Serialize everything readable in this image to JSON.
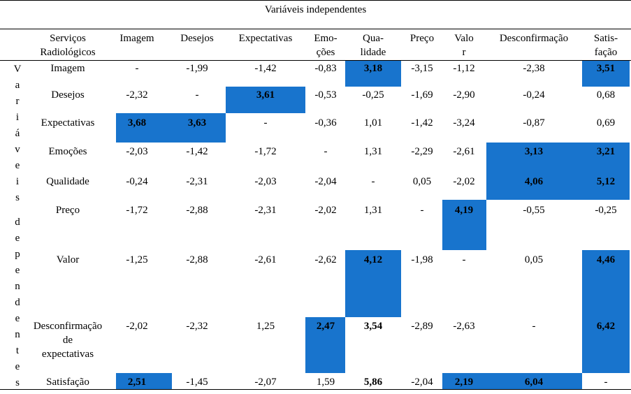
{
  "title": "Variáveis independentes",
  "side_label": [
    "V",
    "a",
    "r",
    "i",
    "á",
    "v",
    "e",
    "i",
    "s",
    "",
    "d",
    "e",
    "p",
    "e",
    "n",
    "d",
    "e",
    "n",
    "t",
    "e",
    "s"
  ],
  "headers": [
    [
      "Serviços",
      "Radiológicos"
    ],
    [
      "Imagem"
    ],
    [
      "Desejos"
    ],
    [
      "Expectativas"
    ],
    [
      "Emo-",
      "ções"
    ],
    [
      "Qua-",
      "lidade"
    ],
    [
      "Preço"
    ],
    [
      "Valo",
      "r"
    ],
    [
      "Desconfirmação"
    ],
    [
      "Satis-",
      "fação"
    ]
  ],
  "rows": [
    {
      "label": [
        "Imagem"
      ],
      "values": [
        "-",
        "-1,99",
        "-1,42",
        "-0,83",
        "3,18",
        "-3,15",
        "-1,12",
        "-2,38",
        "3,51"
      ]
    },
    {
      "label": [
        "Desejos"
      ],
      "values": [
        "-2,32",
        "-",
        "3,61",
        "-0,53",
        "-0,25",
        "-1,69",
        "-2,90",
        "-0,24",
        "0,68"
      ]
    },
    {
      "label": [
        "Expectativas"
      ],
      "values": [
        "3,68",
        "3,63",
        "-",
        "-0,36",
        "1,01",
        "-1,42",
        "-3,24",
        "-0,87",
        "0,69"
      ]
    },
    {
      "label": [
        "Emoções"
      ],
      "values": [
        "-2,03",
        "-1,42",
        "-1,72",
        "-",
        "1,31",
        "-2,29",
        "-2,61",
        "3,13",
        "3,21"
      ]
    },
    {
      "label": [
        "Qualidade"
      ],
      "values": [
        "-0,24",
        "-2,31",
        "-2,03",
        "-2,04",
        "-",
        "0,05",
        "-2,02",
        "4,06",
        "5,12"
      ]
    },
    {
      "label": [
        "Preço"
      ],
      "values": [
        "-1,72",
        "-2,88",
        "-2,31",
        "-2,02",
        "1,31",
        "-",
        "4,19",
        "-0,55",
        "-0,25"
      ]
    },
    {
      "label": [
        "Valor"
      ],
      "values": [
        "-1,25",
        "-2,88",
        "-2,61",
        "-2,62",
        "4,12",
        "-1,98",
        "-",
        "0,05",
        "4,46"
      ]
    },
    {
      "label": [
        "Desconfirmação",
        "de",
        "expectativas"
      ],
      "values": [
        "-2,02",
        "-2,32",
        "1,25",
        "2,47",
        "3,54",
        "-2,89",
        "-2,63",
        "-",
        "6,42"
      ]
    },
    {
      "label": [
        "Satisfação"
      ],
      "values": [
        "2,51",
        "-1,45",
        "-2,07",
        "1,59",
        "5,86",
        "-2,04",
        "2,19",
        "6,04",
        "-"
      ]
    }
  ],
  "highlight_color": "#1874CD"
}
